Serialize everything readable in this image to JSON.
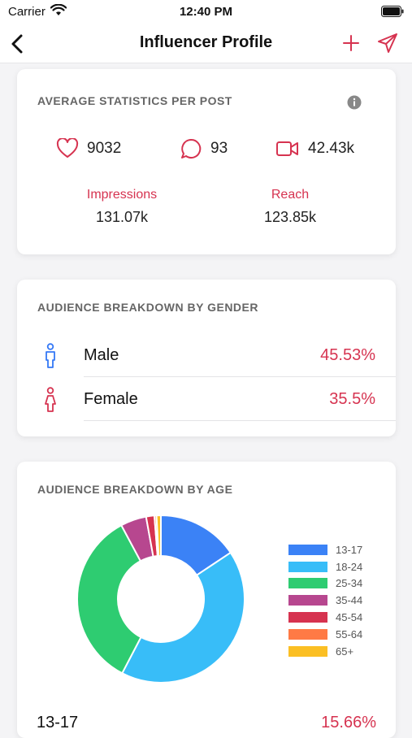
{
  "status_bar": {
    "carrier": "Carrier",
    "time": "12:40 PM",
    "icons": [
      "wifi-icon",
      "battery-icon"
    ]
  },
  "nav": {
    "title": "Influencer Profile",
    "icons": [
      "back-chevron-icon",
      "plus-icon",
      "send-icon"
    ]
  },
  "accent_color": "#d63350",
  "average_stats": {
    "title": "AVERAGE STATISTICS PER POST",
    "likes": "9032",
    "comments": "93",
    "views": "42.43k",
    "impressions_label": "Impressions",
    "impressions_value": "131.07k",
    "reach_label": "Reach",
    "reach_value": "123.85k"
  },
  "gender": {
    "title": "AUDIENCE BREAKDOWN BY GENDER",
    "rows": [
      {
        "label": "Male",
        "value": "45.53%",
        "icon": "male-icon",
        "color": "#3478f6"
      },
      {
        "label": "Female",
        "value": "35.5%",
        "icon": "female-icon",
        "color": "#d63350"
      }
    ]
  },
  "age": {
    "title": "AUDIENCE BREAKDOWN BY AGE",
    "first_row": {
      "label": "13-17",
      "value": "15.66%"
    }
  },
  "chart_data": {
    "type": "pie",
    "donut": true,
    "categories": [
      "13-17",
      "18-24",
      "25-34",
      "35-44",
      "45-54",
      "55-64",
      "65+"
    ],
    "values": [
      15.66,
      42.0,
      34.5,
      5.0,
      1.6,
      0.4,
      0.84
    ],
    "colors": [
      "#3b82f6",
      "#38bdf8",
      "#2ecc71",
      "#b7478f",
      "#d63350",
      "#ff7a45",
      "#fbbf24"
    ],
    "legend_position": "right"
  }
}
